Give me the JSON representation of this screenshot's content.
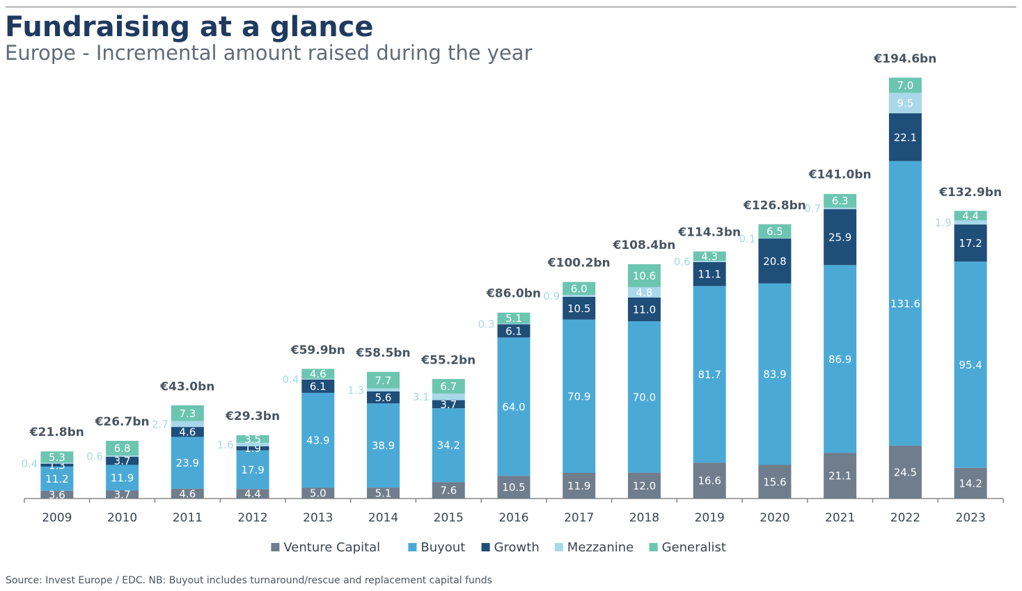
{
  "chart_data": {
    "type": "stacked-bar",
    "title": "Fundraising at a glance",
    "subtitle": "Europe - Incremental amount raised during the year",
    "source": "Source: Invest Europe / EDC.  NB: Buyout includes turnaround/rescue and replacement capital funds",
    "categories": [
      "2009",
      "2010",
      "2011",
      "2012",
      "2013",
      "2014",
      "2015",
      "2016",
      "2017",
      "2018",
      "2019",
      "2020",
      "2021",
      "2022",
      "2023"
    ],
    "series": [
      {
        "name": "Venture Capital",
        "color": "#707d8c",
        "values": [
          3.6,
          3.7,
          4.6,
          4.4,
          5.0,
          5.1,
          7.6,
          10.5,
          11.9,
          12.0,
          16.6,
          15.6,
          21.1,
          24.5,
          14.2
        ],
        "value_labels": [
          "3.6",
          "3.7",
          "4.6",
          "4.4",
          "5.0",
          "5.1",
          "7.6",
          "10.5",
          "11.9",
          "12.0",
          "16.6",
          "15.6",
          "21.1",
          "24.5",
          "14.2"
        ]
      },
      {
        "name": "Buyout",
        "color": "#4ba9d6",
        "values": [
          11.2,
          11.9,
          23.9,
          17.9,
          43.9,
          38.9,
          34.2,
          64.0,
          70.9,
          70.0,
          81.7,
          83.9,
          86.9,
          131.6,
          95.4
        ],
        "value_labels": [
          "11.2",
          "11.9",
          "23.9",
          "17.9",
          "43.9",
          "38.9",
          "34.2",
          "64.0",
          "70.9",
          "70.0",
          "81.7",
          "83.9",
          "86.9",
          "131.6",
          "95.4"
        ]
      },
      {
        "name": "Growth",
        "color": "#1f4e79",
        "values": [
          1.3,
          3.7,
          4.6,
          1.9,
          6.1,
          5.6,
          3.7,
          6.1,
          10.5,
          11.0,
          11.1,
          20.8,
          25.9,
          22.1,
          17.2
        ],
        "value_labels": [
          "1.3",
          "3.7",
          "4.6",
          "1.9",
          "6.1",
          "5.6",
          "3.7",
          "6.1",
          "10.5",
          "11.0",
          "11.1",
          "20.8",
          "25.9",
          "22.1",
          "17.2"
        ]
      },
      {
        "name": "Mezzanine",
        "color": "#a8d8ea",
        "values": [
          0.4,
          0.6,
          2.7,
          1.6,
          0.4,
          1.3,
          3.1,
          0.3,
          0.9,
          4.8,
          0.6,
          0.1,
          0.7,
          9.5,
          1.9
        ],
        "value_labels": [
          "0.4",
          "0.6",
          "2.7",
          "1.6",
          "0.4",
          "1.3",
          "3.1",
          "0.3",
          "0.9",
          "4.8",
          "0.6",
          "0.1",
          "0.7",
          "9.5",
          "1.9"
        ]
      },
      {
        "name": "Generalist",
        "color": "#6cc5b0",
        "values": [
          5.3,
          6.8,
          7.3,
          3.5,
          4.6,
          7.7,
          6.7,
          5.1,
          6.0,
          10.6,
          4.3,
          6.5,
          6.3,
          7.0,
          4.4
        ],
        "value_labels": [
          "5.3",
          "6.8",
          "7.3",
          "3.5",
          "4.6",
          "7.7",
          "6.7",
          "5.1",
          "6.0",
          "10.6",
          "4.3",
          "6.5",
          "6.3",
          "7.0",
          "4.4"
        ]
      }
    ],
    "totals": {
      "values": [
        21.8,
        26.7,
        43.0,
        29.3,
        59.9,
        58.5,
        55.2,
        86.0,
        100.2,
        108.4,
        114.3,
        126.8,
        141.0,
        194.6,
        132.9
      ],
      "value_labels": [
        "€21.8bn",
        "€26.7bn",
        "€43.0bn",
        "€29.3bn",
        "€59.9bn",
        "€58.5bn",
        "€55.2bn",
        "€86.0bn",
        "€100.2bn",
        "€108.4bn",
        "€114.3bn",
        "€126.8bn",
        "€141.0bn",
        "€194.6bn",
        "€132.9bn"
      ]
    }
  }
}
